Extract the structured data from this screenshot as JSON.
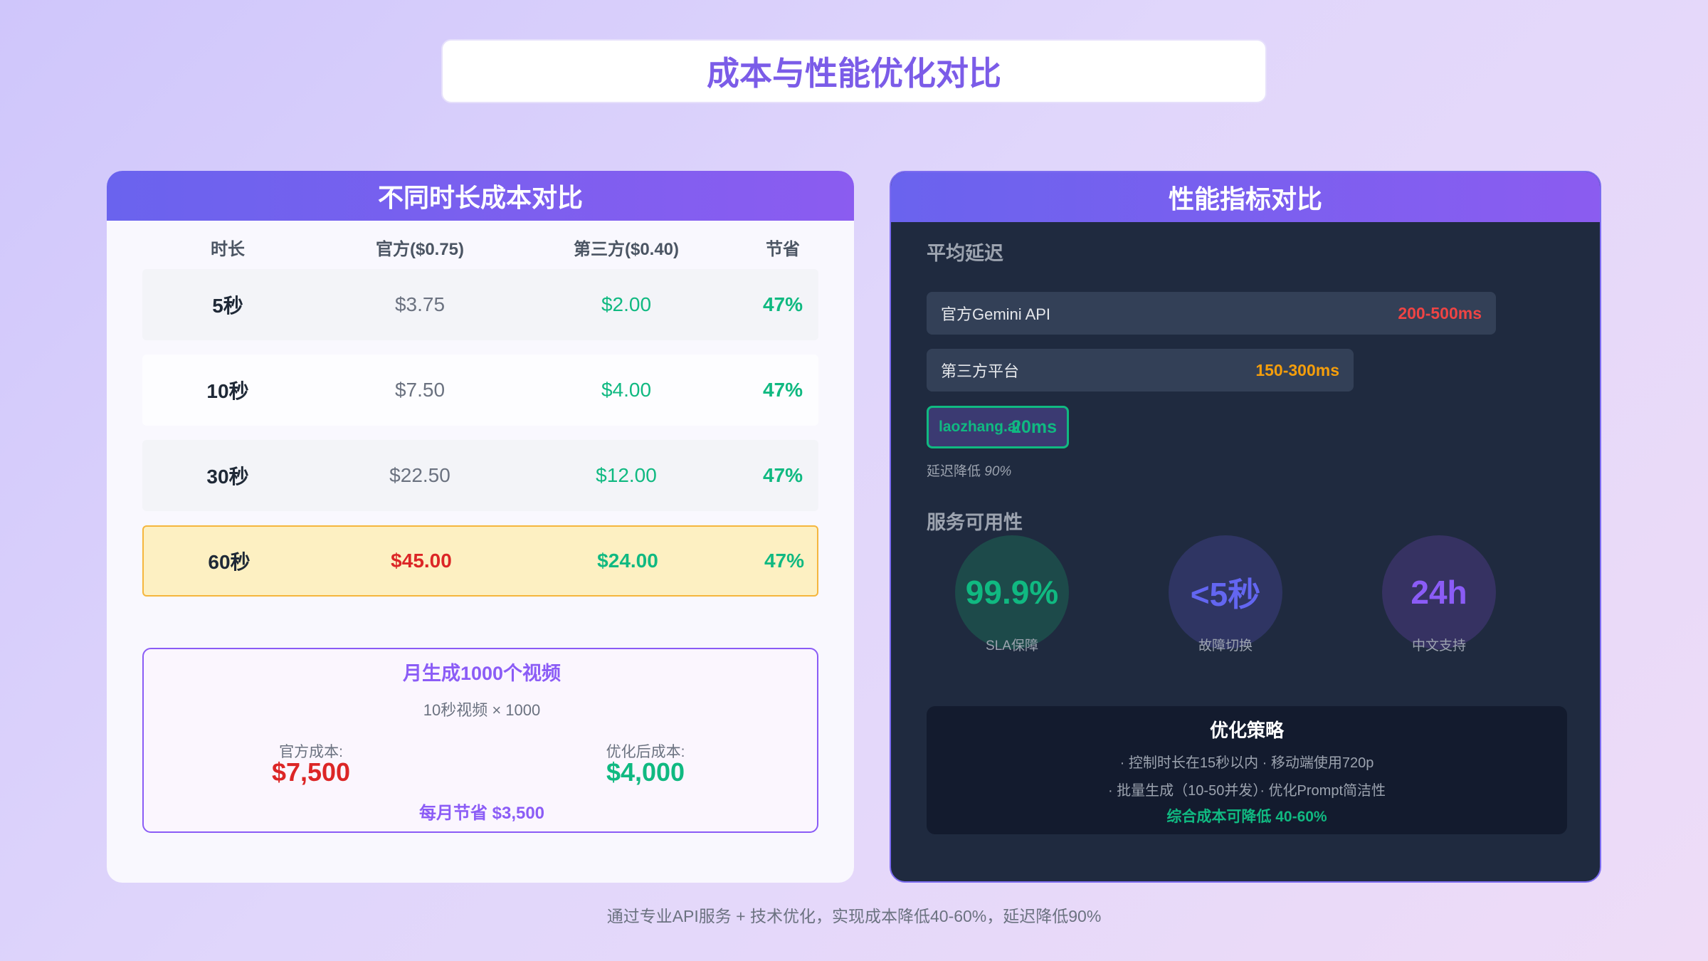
{
  "title": "成本与性能优化对比",
  "left": {
    "header": "不同时长成本对比",
    "columns": [
      "时长",
      "官方($0.75)",
      "第三方($0.40)",
      "节省"
    ],
    "rows": [
      [
        "5秒",
        "$3.75",
        "$2.00",
        "47%"
      ],
      [
        "10秒",
        "$7.50",
        "$4.00",
        "47%"
      ],
      [
        "30秒",
        "$22.50",
        "$12.00",
        "47%"
      ],
      [
        "60秒",
        "$45.00",
        "$24.00",
        "47%"
      ]
    ],
    "summary": {
      "title": "月生成1000个视频",
      "subtitle": "10秒视频 × 1000",
      "official_label": "官方成本:",
      "official_value": "$7,500",
      "optimized_label": "优化后成本:",
      "optimized_value": "$4,000",
      "savings": "每月节省 $3,500"
    }
  },
  "right": {
    "header": "性能指标对比",
    "latency_title": "平均延迟",
    "bars": [
      {
        "label": "官方Gemini API",
        "value": "200-500ms",
        "color": "#ef4444"
      },
      {
        "label": "第三方平台",
        "value": "150-300ms",
        "color": "#f59e0b"
      },
      {
        "label": "laozhang.ai",
        "value": "20ms",
        "color": "#10b981"
      }
    ],
    "latency_note": "延迟降低",
    "latency_note_value": "90%",
    "availability_title": "服务可用性",
    "metrics": [
      {
        "value": "99.9%",
        "label": "SLA保障",
        "color": "#10b981"
      },
      {
        "value": "<5秒",
        "label": "故障切换",
        "color": "#6366f1"
      },
      {
        "value": "24h",
        "label": "中文支持",
        "color": "#8b5cf6"
      }
    ],
    "strategy": {
      "title": "优化策略",
      "line1": "· 控制时长在15秒以内 · 移动端使用720p",
      "line2": "· 批量生成（10-50并发）· 优化Prompt简洁性",
      "highlight": "综合成本可降低 40-60%"
    }
  },
  "footer": "通过专业API服务 + 技术优化，实现成本降低40-60%，延迟降低90%"
}
